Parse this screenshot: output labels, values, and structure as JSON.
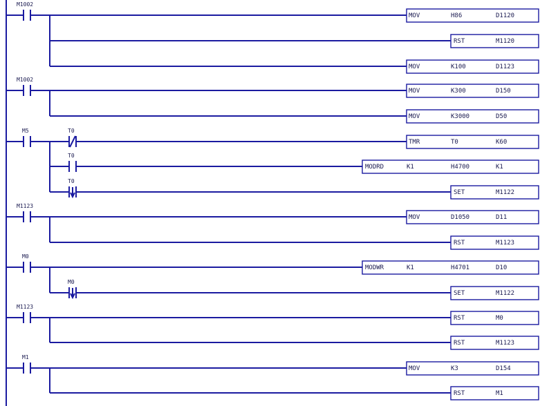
{
  "rungs": [
    {
      "contact": "M1002",
      "instructions": [
        {
          "op": "MOV",
          "a": "H86",
          "b": "D1120"
        },
        {
          "op": "RST",
          "a": "M1120"
        },
        {
          "op": "MOV",
          "a": "K100",
          "b": "D1123"
        }
      ]
    },
    {
      "contact": "M1002",
      "instructions": [
        {
          "op": "MOV",
          "a": "K300",
          "b": "D150"
        },
        {
          "op": "MOV",
          "a": "K3000",
          "b": "D50"
        }
      ]
    },
    {
      "contact": "M5",
      "instructions": [
        {
          "op": "TMR",
          "a": "T0",
          "b": "K60",
          "contact": "T0",
          "contact_type": "nc"
        },
        {
          "op": "MODRD",
          "a": "K1",
          "b": "H4700",
          "c": "K1",
          "contact": "T0",
          "contact_type": "no"
        },
        {
          "op": "SET",
          "a": "M1122",
          "contact": "T0",
          "contact_type": "falling"
        }
      ]
    },
    {
      "contact": "M1123",
      "instructions": [
        {
          "op": "MOV",
          "a": "D1050",
          "b": "D11"
        },
        {
          "op": "RST",
          "a": "M1123"
        }
      ]
    },
    {
      "contact": "M0",
      "instructions": [
        {
          "op": "MODWR",
          "a": "K1",
          "b": "H4701",
          "c": "D10"
        },
        {
          "op": "SET",
          "a": "M1122",
          "contact": "M0",
          "contact_type": "falling"
        }
      ]
    },
    {
      "contact": "M1123",
      "instructions": [
        {
          "op": "RST",
          "a": "M0"
        },
        {
          "op": "RST",
          "a": "M1123"
        }
      ]
    },
    {
      "contact": "M1",
      "instructions": [
        {
          "op": "MOV",
          "a": "K3",
          "b": "D154"
        },
        {
          "op": "RST",
          "a": "M1"
        }
      ]
    }
  ]
}
